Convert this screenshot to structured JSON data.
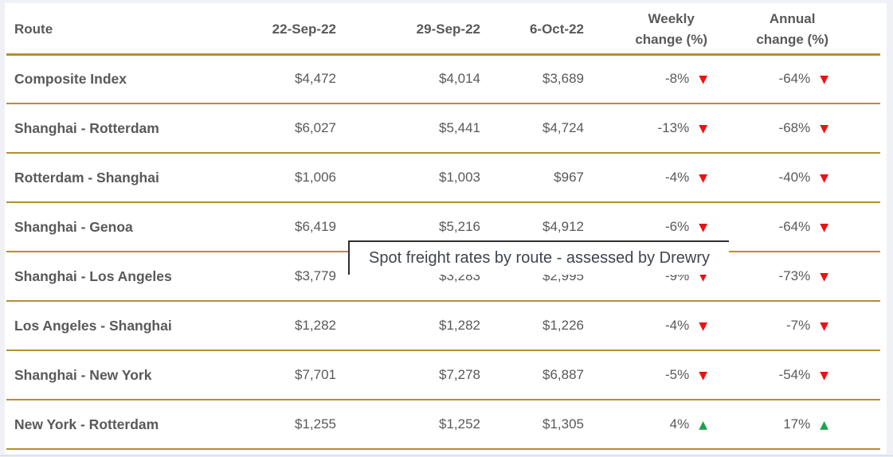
{
  "tooltip": {
    "text": "Spot freight rates by route - assessed by Drewry"
  },
  "colors": {
    "page_background": "#EFF1F6",
    "card_background": "#FFFFFF",
    "accent_gold": "#B3902F",
    "text_gray": "#595959",
    "down_red": "#EE1111",
    "up_green": "#18A44A",
    "tooltip_border": "#2E2E2E",
    "tooltip_text": "#3F4450"
  },
  "icons": {
    "down": {
      "name": "triangle-down-icon",
      "glyph": "▼"
    },
    "up": {
      "name": "triangle-up-icon",
      "glyph": "▲"
    }
  },
  "table": {
    "columns": [
      {
        "key": "route",
        "label": "Route"
      },
      {
        "key": "sep22",
        "label": "22-Sep-22"
      },
      {
        "key": "sep29",
        "label": "29-Sep-22"
      },
      {
        "key": "oct6",
        "label": "6-Oct-22"
      },
      {
        "key": "weekly",
        "label_line1": "Weekly",
        "label_line2": "change (%)"
      },
      {
        "key": "annual",
        "label_line1": "Annual",
        "label_line2": "change (%)"
      }
    ],
    "rows": [
      {
        "route": "Composite Index",
        "sep22": "$4,472",
        "sep29": "$4,014",
        "oct6": "$3,689",
        "weekly": {
          "value": "-8%",
          "dir": "down"
        },
        "annual": {
          "value": "-64%",
          "dir": "down"
        }
      },
      {
        "route": "Shanghai - Rotterdam",
        "sep22": "$6,027",
        "sep29": "$5,441",
        "oct6": "$4,724",
        "weekly": {
          "value": "-13%",
          "dir": "down"
        },
        "annual": {
          "value": "-68%",
          "dir": "down"
        }
      },
      {
        "route": "Rotterdam - Shanghai",
        "sep22": "$1,006",
        "sep29": "$1,003",
        "oct6": "$967",
        "weekly": {
          "value": "-4%",
          "dir": "down"
        },
        "annual": {
          "value": "-40%",
          "dir": "down"
        }
      },
      {
        "route": "Shanghai - Genoa",
        "sep22": "$6,419",
        "sep29": "$5,216",
        "oct6": "$4,912",
        "weekly": {
          "value": "-6%",
          "dir": "down"
        },
        "annual": {
          "value": "-64%",
          "dir": "down"
        }
      },
      {
        "route": "Shanghai - Los Angeles",
        "sep22": "$3,779",
        "sep29": "$3,283",
        "oct6": "$2,995",
        "weekly": {
          "value": "-9%",
          "dir": "down"
        },
        "annual": {
          "value": "-73%",
          "dir": "down"
        }
      },
      {
        "route": "Los Angeles - Shanghai",
        "sep22": "$1,282",
        "sep29": "$1,282",
        "oct6": "$1,226",
        "weekly": {
          "value": "-4%",
          "dir": "down"
        },
        "annual": {
          "value": "-7%",
          "dir": "down"
        }
      },
      {
        "route": "Shanghai - New York",
        "sep22": "$7,701",
        "sep29": "$7,278",
        "oct6": "$6,887",
        "weekly": {
          "value": "-5%",
          "dir": "down"
        },
        "annual": {
          "value": "-54%",
          "dir": "down"
        }
      },
      {
        "route": "New York - Rotterdam",
        "sep22": "$1,255",
        "sep29": "$1,252",
        "oct6": "$1,305",
        "weekly": {
          "value": "4%",
          "dir": "up"
        },
        "annual": {
          "value": "17%",
          "dir": "up"
        }
      }
    ]
  },
  "chart_data": {
    "type": "table",
    "title": "Spot freight rates by route - assessed by Drewry",
    "columns": [
      "Route",
      "22-Sep-22",
      "29-Sep-22",
      "6-Oct-22",
      "Weekly change (%)",
      "Annual change (%)"
    ],
    "rows": [
      [
        "Composite Index",
        4472,
        4014,
        3689,
        -8,
        -64
      ],
      [
        "Shanghai - Rotterdam",
        6027,
        5441,
        4724,
        -13,
        -68
      ],
      [
        "Rotterdam - Shanghai",
        1006,
        1003,
        967,
        -4,
        -40
      ],
      [
        "Shanghai - Genoa",
        6419,
        5216,
        4912,
        -6,
        -64
      ],
      [
        "Shanghai - Los Angeles",
        3779,
        3283,
        2995,
        -9,
        -73
      ],
      [
        "Los Angeles - Shanghai",
        1282,
        1282,
        1226,
        -4,
        -7
      ],
      [
        "Shanghai - New York",
        7701,
        7278,
        6887,
        -5,
        -54
      ],
      [
        "New York - Rotterdam",
        1255,
        1252,
        1305,
        4,
        17
      ]
    ],
    "layout_hints": {
      "trend_markers": "red down-triangle for negative change, green up-triangle for positive change",
      "divider_color": "#B3902F",
      "grid": "horizontal gold rules between rows only"
    }
  }
}
